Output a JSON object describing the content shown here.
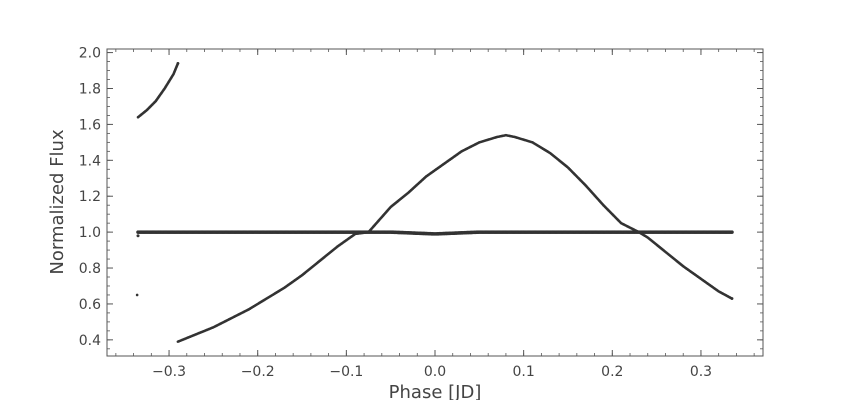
{
  "chart_data": {
    "type": "scatter",
    "title": "",
    "xlabel": "Phase [JD]",
    "ylabel": "Normalized Flux",
    "xlim": [
      -0.37,
      0.37
    ],
    "ylim": [
      0.31,
      2.02
    ],
    "grid": false,
    "legend": "none",
    "colors": {
      "points": "#333333",
      "axes": "#555555",
      "text": "#444444"
    },
    "x_ticks": [
      -0.3,
      -0.2,
      -0.1,
      0.0,
      0.1,
      0.2,
      0.3
    ],
    "x_tick_labels": [
      "−0.3",
      "−0.2",
      "−0.1",
      "0.0",
      "0.1",
      "0.2",
      "0.3"
    ],
    "y_ticks": [
      0.4,
      0.6,
      0.8,
      1.0,
      1.2,
      1.4,
      1.6,
      1.8,
      2.0
    ],
    "y_tick_labels": [
      "0.4",
      "0.6",
      "0.8",
      "1.0",
      "1.2",
      "1.4",
      "1.6",
      "1.8",
      "2.0"
    ],
    "series": [
      {
        "x": [
          -0.335,
          -0.3,
          -0.25,
          -0.2,
          -0.15,
          -0.1,
          -0.05,
          0.0,
          0.05,
          0.1,
          0.15,
          0.2,
          0.25,
          0.3,
          0.335
        ],
        "y": [
          1.0,
          1.0,
          1.0,
          1.0,
          1.0,
          1.0,
          1.0,
          0.99,
          1.0,
          1.0,
          1.0,
          1.0,
          1.0,
          1.0,
          1.0
        ]
      },
      {
        "x": [
          -0.29,
          -0.27,
          -0.25,
          -0.23,
          -0.21,
          -0.19,
          -0.17,
          -0.15,
          -0.13,
          -0.11,
          -0.09,
          -0.075,
          -0.05,
          -0.03,
          -0.01,
          0.01,
          0.03,
          0.05,
          0.07,
          0.08,
          0.09,
          0.11,
          0.13,
          0.15,
          0.17,
          0.19,
          0.21,
          0.23,
          0.24,
          0.26,
          0.28,
          0.3,
          0.32,
          0.335
        ],
        "y": [
          0.39,
          0.43,
          0.47,
          0.52,
          0.57,
          0.63,
          0.69,
          0.76,
          0.84,
          0.92,
          0.99,
          1.0,
          1.14,
          1.22,
          1.31,
          1.38,
          1.45,
          1.5,
          1.53,
          1.54,
          1.53,
          1.5,
          1.44,
          1.36,
          1.26,
          1.15,
          1.05,
          1.0,
          0.97,
          0.89,
          0.81,
          0.74,
          0.67,
          0.63
        ]
      },
      {
        "x": [
          -0.335,
          -0.325,
          -0.315,
          -0.305,
          -0.295,
          -0.29
        ],
        "y": [
          1.64,
          1.68,
          1.73,
          1.8,
          1.88,
          1.94
        ]
      },
      {
        "x": [
          -0.336,
          -0.335
        ],
        "y": [
          0.65,
          0.98
        ]
      }
    ]
  }
}
